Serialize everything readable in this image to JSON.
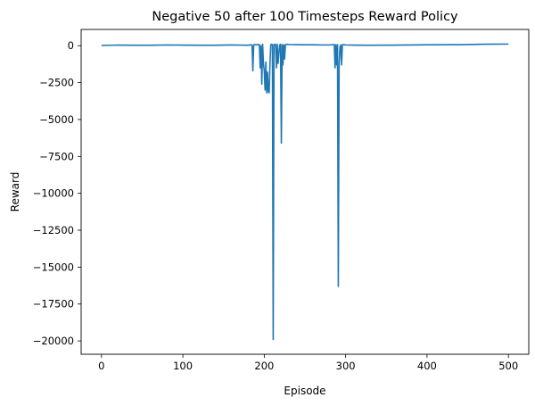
{
  "chart_data": {
    "type": "line",
    "title": "Negative 50 after 100 Timesteps Reward Policy",
    "xlabel": "Episode",
    "ylabel": "Reward",
    "xlim": [
      -25,
      525
    ],
    "ylim": [
      -20900,
      1100
    ],
    "xticks": [
      0,
      100,
      200,
      300,
      400,
      500
    ],
    "xtick_labels": [
      "0",
      "100",
      "200",
      "300",
      "400",
      "500"
    ],
    "yticks": [
      0,
      -2500,
      -5000,
      -7500,
      -10000,
      -12500,
      -15000,
      -17500,
      -20000
    ],
    "ytick_labels": [
      "0",
      "−2500",
      "−5000",
      "−7500",
      "−10000",
      "−12500",
      "−15000",
      "−17500",
      "−20000"
    ],
    "grid": false,
    "series": [
      {
        "color": "#1f77b4",
        "x": [
          0,
          20,
          40,
          60,
          80,
          100,
          120,
          140,
          160,
          180,
          184,
          185,
          186,
          187,
          188,
          190,
          192,
          194,
          195,
          196,
          197,
          198,
          199,
          200,
          201,
          202,
          203,
          204,
          205,
          206,
          207,
          208,
          209,
          210,
          211,
          212,
          213,
          214,
          215,
          216,
          217,
          218,
          219,
          220,
          221,
          222,
          223,
          224,
          225,
          226,
          227,
          228,
          230,
          240,
          250,
          260,
          270,
          280,
          286,
          287,
          288,
          289,
          290,
          291,
          292,
          293,
          294,
          295,
          296,
          297,
          298,
          300,
          310,
          330,
          360,
          400,
          440,
          470,
          500
        ],
        "y": [
          20,
          40,
          30,
          30,
          50,
          40,
          30,
          30,
          50,
          30,
          60,
          30,
          -1700,
          60,
          80,
          60,
          70,
          80,
          -1500,
          0,
          -2600,
          100,
          -1200,
          -1700,
          -3000,
          -1100,
          -3200,
          -1800,
          -3100,
          -3200,
          -1300,
          50,
          100,
          60,
          -19900,
          80,
          100,
          60,
          -1500,
          100,
          -1200,
          -500,
          50,
          100,
          -6600,
          60,
          -1300,
          80,
          -900,
          60,
          80,
          100,
          80,
          70,
          60,
          60,
          50,
          50,
          80,
          -1500,
          60,
          -1300,
          80,
          -16300,
          -1200,
          -100,
          60,
          -1300,
          50,
          80,
          70,
          50,
          40,
          30,
          40,
          60,
          70,
          100,
          110
        ]
      }
    ]
  }
}
